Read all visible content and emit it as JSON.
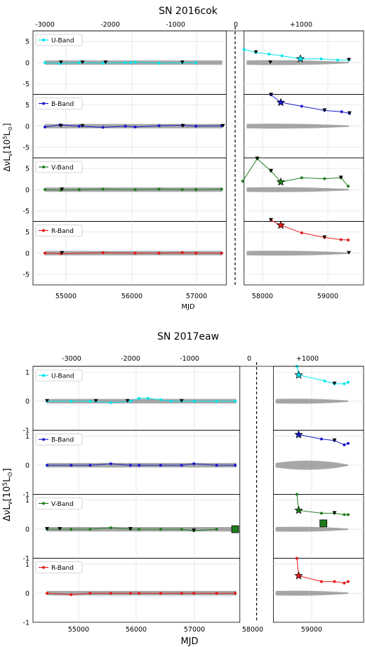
{
  "figure": {
    "panels": [
      {
        "title": "SN 2016cok",
        "xlabel": "MJD",
        "ylabel_main": "Δ νL",
        "ylabel_sub": "ν",
        "ylabel_unit": "[10",
        "ylabel_exp": "5",
        "ylabel_unit2": "L",
        "ylabel_sun": "⊙",
        "ylabel_close": "]",
        "top_ticks": [
          "-3000",
          "-2000",
          "-1000",
          "0",
          "+1000"
        ],
        "bottom_ticks": [
          "55000",
          "56000",
          "57000",
          "58000",
          "59000"
        ],
        "y_ticks": [
          "5",
          "0",
          "-5"
        ]
      },
      {
        "title": "SN 2017eaw",
        "xlabel": "MJD",
        "ylabel_main": "Δ νL",
        "ylabel_sub": "ν",
        "ylabel_unit": "[10",
        "ylabel_exp": "5",
        "ylabel_unit2": "L",
        "ylabel_sun": "⊙",
        "ylabel_close": "]",
        "top_ticks": [
          "-3000",
          "-2000",
          "-1000",
          "0",
          "+1000"
        ],
        "bottom_ticks": [
          "55000",
          "56000",
          "57000",
          "58000",
          "59000"
        ],
        "y_ticks": [
          "1",
          "0",
          "-1"
        ]
      }
    ]
  },
  "chart_data": [
    {
      "type": "line",
      "title": "SN 2016cok",
      "xlabel": "MJD",
      "ylabel": "ΔνLν [10^5 L⊙]",
      "explosion_mjd": 7532,
      "xlim": [
        54300,
        59600
      ],
      "xlim_break": [
        57450,
        57720
      ],
      "ylim": [
        -7.5,
        7.5
      ],
      "colors": {
        "U-Band": "#00e5ee",
        "B-Band": "#1a1acd",
        "V-Band": "#1e7d1e",
        "R-Band": "#e31a1a",
        "band": "#808080"
      },
      "subplots": [
        {
          "band": "U-Band",
          "pre": {
            "mjd": [
              54580,
              54880,
              55200,
              55560,
              55900,
              55980,
              56050,
              56420,
              56780,
              56990
            ],
            "values": [
              0.0,
              -0.2,
              0.0,
              -0.1,
              0.0,
              0.0,
              0.1,
              -0.1,
              0.0,
              0.0
            ],
            "upper_limits_mjd": [
              54900,
              55250,
              55600,
              56780
            ]
          },
          "post": {
            "mjd": [
              57720,
              57900,
              58100,
              58300,
              58580,
              58900,
              59150,
              59320
            ],
            "values": [
              3.1,
              2.4,
              2.0,
              1.6,
              0.9,
              0.9,
              0.6,
              0.6
            ],
            "upper_limits_mjd": [
              57900,
              58120,
              59320
            ],
            "star_mjd": 58580
          }
        },
        {
          "band": "B-Band",
          "pre": {
            "mjd": [
              54580,
              54880,
              55200,
              55560,
              55900,
              56050,
              56420,
              56780,
              56990,
              57380
            ],
            "values": [
              -0.2,
              0.3,
              0.0,
              -0.3,
              0.0,
              -0.2,
              0.1,
              0.2,
              0.0,
              0.1
            ],
            "upper_limits_mjd": [
              54900,
              55250,
              56790,
              57400
            ]
          },
          "post": {
            "mjd": [
              58130,
              58280,
              58600,
              58950,
              59210,
              59330
            ],
            "values": [
              7.4,
              5.6,
              4.7,
              3.7,
              3.4,
              3.0
            ],
            "upper_limits_mjd": [
              58130,
              58950,
              59330
            ],
            "star_mjd": 58280
          }
        },
        {
          "band": "V-Band",
          "pre": {
            "mjd": [
              54580,
              54900,
              55200,
              55560,
              56050,
              56420,
              56780,
              56990,
              57380
            ],
            "values": [
              0.0,
              -0.1,
              0.0,
              0.1,
              0.0,
              0.1,
              0.0,
              0.0,
              0.1
            ],
            "upper_limits_mjd": [
              54920
            ]
          },
          "post": {
            "mjd": [
              57700,
              57920,
              58130,
              58280,
              58600,
              58950,
              59200,
              59310
            ],
            "values": [
              2.0,
              7.3,
              4.4,
              1.8,
              2.8,
              2.6,
              2.8,
              0.8
            ],
            "upper_limits_mjd": [
              57920,
              58130,
              59200
            ],
            "star_mjd": 58280
          }
        },
        {
          "band": "R-Band",
          "pre": {
            "mjd": [
              54580,
              54900,
              55560,
              56050,
              56420,
              56780,
              56990,
              57380
            ],
            "values": [
              0.0,
              -0.1,
              0.1,
              0.0,
              0.0,
              0.1,
              0.0,
              0.0
            ],
            "upper_limits_mjd": [
              54920
            ]
          },
          "post": {
            "mjd": [
              58130,
              58280,
              58600,
              58950,
              59200,
              59310
            ],
            "values": [
              7.8,
              6.6,
              4.8,
              3.7,
              3.2,
              3.1
            ],
            "upper_limits_mjd": [
              58130,
              58950,
              59320
            ],
            "star_mjd": 58280
          }
        }
      ]
    },
    {
      "type": "line",
      "title": "SN 2017eaw",
      "xlabel": "MJD",
      "ylabel": "ΔνLν [10^5 L⊙]",
      "explosion_mjd": 7886,
      "xlim": [
        54300,
        59750
      ],
      "xlim_break": [
        57780,
        58350
      ],
      "ylim": [
        -1.0,
        1.2
      ],
      "colors": {
        "U-Band": "#00e5ee",
        "B-Band": "#1a1acd",
        "V-Band": "#1e7d1e",
        "R-Band": "#e31a1a",
        "band": "#808080"
      },
      "subplots": [
        {
          "band": "U-Band",
          "pre": {
            "mjd": [
              54580,
              54900,
              55200,
              55560,
              55900,
              56050,
              56200,
              56420,
              56600,
              56780,
              57000,
              57380,
              57700
            ],
            "values": [
              0.0,
              0.0,
              0.0,
              -0.05,
              0.0,
              0.1,
              0.1,
              0.05,
              0.0,
              0.0,
              0.0,
              0.0,
              0.0
            ],
            "upper_limits_mjd": [
              54580,
              55300,
              55850,
              56780
            ]
          },
          "post": {
            "mjd": [
              58750,
              58780,
              59200,
              59350,
              59500,
              59560
            ],
            "values": [
              1.2,
              0.9,
              0.7,
              0.6,
              0.6,
              0.65
            ],
            "upper_limits_mjd": [
              59350
            ],
            "star_mjd": 58780
          }
        },
        {
          "band": "B-Band",
          "pre": {
            "mjd": [
              54580,
              54900,
              55200,
              55560,
              55900,
              56050,
              56420,
              56780,
              56990,
              57380,
              57700
            ],
            "values": [
              0.0,
              0.0,
              0.0,
              0.05,
              0.0,
              0.0,
              0.0,
              0.0,
              0.05,
              0.0,
              0.0
            ],
            "upper_limits_mjd": []
          },
          "post": {
            "mjd": [
              58780,
              59150,
              59350,
              59500,
              59560
            ],
            "values": [
              1.05,
              0.9,
              0.85,
              0.7,
              0.75
            ],
            "upper_limits_mjd": [
              59350
            ],
            "star_mjd": 58780
          }
        },
        {
          "band": "V-Band",
          "pre": {
            "mjd": [
              54580,
              54900,
              55200,
              55560,
              55900,
              56050,
              56420,
              56780,
              56990,
              57380
            ],
            "values": [
              0.0,
              0.0,
              0.0,
              0.05,
              0.0,
              0.0,
              0.0,
              0.0,
              -0.05,
              0.0
            ],
            "upper_limits_mjd": [
              54580,
              54750,
              55900,
              56990
            ],
            "square_mjd": 57700,
            "square_value": 0.0
          },
          "post": {
            "mjd": [
              58750,
              58780,
              59150,
              59350,
              59500,
              59560
            ],
            "values": [
              1.2,
              0.65,
              0.55,
              0.55,
              0.5,
              0.5
            ],
            "upper_limits_mjd": [
              59350
            ],
            "star_mjd": 58780,
            "square_mjd": 59180,
            "square_value": 0.2
          }
        },
        {
          "band": "R-Band",
          "pre": {
            "mjd": [
              54580,
              54900,
              55200,
              55560,
              55900,
              56050,
              56420,
              56780,
              56990,
              57380,
              57700
            ],
            "values": [
              0.0,
              -0.05,
              0.0,
              0.0,
              0.0,
              0.0,
              0.0,
              0.0,
              0.0,
              0.0,
              0.0
            ],
            "upper_limits_mjd": []
          },
          "post": {
            "mjd": [
              58750,
              58780,
              59150,
              59350,
              59500,
              59560
            ],
            "values": [
              1.2,
              0.6,
              0.4,
              0.4,
              0.35,
              0.4
            ],
            "upper_limits_mjd": [],
            "star_mjd": 58780
          }
        }
      ]
    }
  ]
}
